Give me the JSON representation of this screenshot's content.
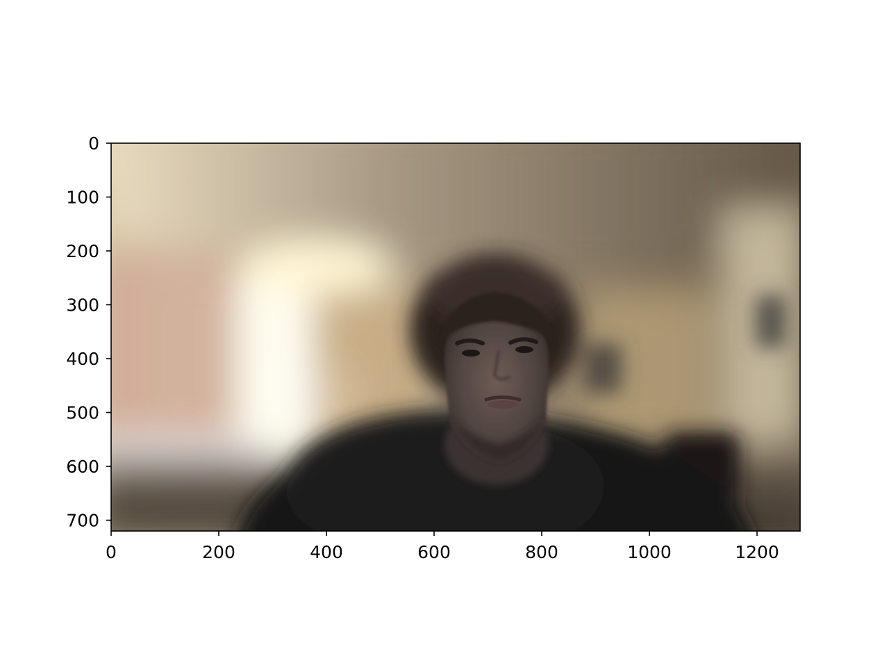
{
  "chart_data": {
    "type": "image",
    "title": "",
    "xlabel": "",
    "ylabel": "",
    "xlim": [
      0,
      1280
    ],
    "ylim": [
      720,
      0
    ],
    "x_ticks": [
      0,
      200,
      400,
      600,
      800,
      1000,
      1200
    ],
    "y_ticks": [
      0,
      100,
      200,
      300,
      400,
      500,
      600,
      700
    ],
    "grid": false,
    "image_content": "blurred-background-webcam-portrait",
    "colors": {
      "frame": "#000000",
      "tick_label": "#000000",
      "background": "#ffffff"
    }
  }
}
